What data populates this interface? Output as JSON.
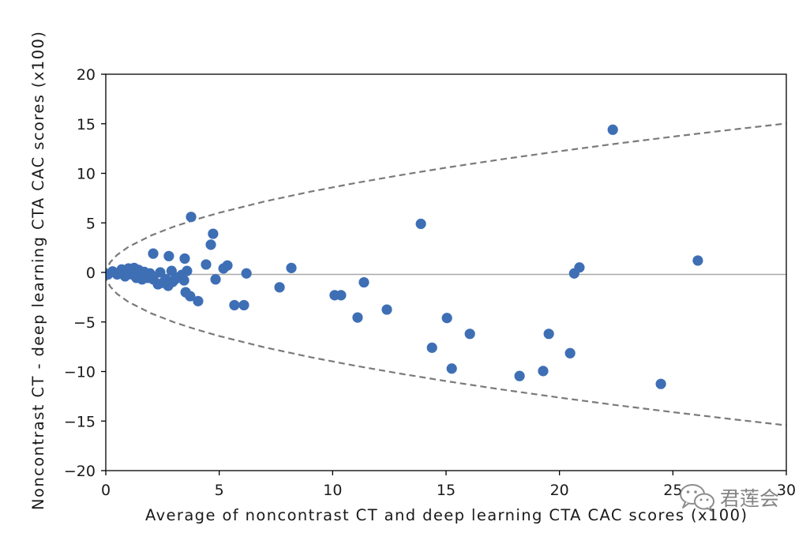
{
  "chart_data": {
    "type": "scatter",
    "xlabel": "Average of noncontrast CT and deep learning CTA CAC scores (x100)",
    "ylabel": "Noncontrast CT - deep learning CTA CAC scores (x100)",
    "xlim": [
      0,
      30
    ],
    "ylim": [
      -20,
      20
    ],
    "xticks": [
      0,
      5,
      10,
      15,
      20,
      25,
      30
    ],
    "xtick_labels": [
      "0",
      "5",
      "10",
      "15",
      "20",
      "25",
      "30"
    ],
    "yticks": [
      20,
      15,
      10,
      5,
      0,
      -5,
      -10,
      -15,
      -20
    ],
    "ytick_labels": [
      "20",
      "15",
      "10",
      "5",
      "0",
      "−5",
      "−10",
      "−15",
      "−20"
    ],
    "grid": false,
    "legend": "none",
    "series": [
      {
        "marker": "circle",
        "color": "#3e6fb5",
        "x": [
          22.35,
          3.76,
          4.73,
          4.63,
          13.89,
          26.1,
          20.88,
          20.65,
          8.18,
          6.2,
          5.36,
          5.19,
          4.42,
          4.84,
          3.48,
          2.78,
          2.09,
          3.58,
          3.45,
          3.52,
          3.72,
          4.07,
          5.67,
          6.09,
          7.66,
          10.09,
          10.37,
          11.38,
          11.1,
          12.39,
          15.04,
          14.38,
          15.25,
          16.05,
          18.24,
          19.28,
          19.53,
          20.47,
          24.47,
          0.1,
          0.3,
          0.5,
          0.7,
          0.85,
          1.0,
          1.15,
          1.25,
          1.35,
          1.45,
          1.6,
          1.7,
          1.85,
          1.95,
          2.1,
          2.3,
          2.4,
          2.5,
          2.65,
          2.75,
          2.9,
          2.95,
          3.05,
          3.2,
          3.35
        ],
        "y": [
          14.4,
          5.6,
          3.9,
          2.8,
          4.9,
          1.2,
          0.5,
          -0.1,
          0.45,
          -0.1,
          0.7,
          0.4,
          0.8,
          -0.7,
          1.4,
          1.65,
          1.9,
          0.15,
          -0.8,
          -2.0,
          -2.4,
          -2.9,
          -3.3,
          -3.3,
          -1.5,
          -2.3,
          -2.3,
          -1.0,
          -4.55,
          -3.75,
          -4.6,
          -7.6,
          -9.7,
          -6.2,
          -10.45,
          -9.95,
          -6.2,
          -8.15,
          -11.25,
          -0.2,
          0.1,
          -0.2,
          0.3,
          -0.4,
          0.4,
          -0.2,
          0.45,
          -0.55,
          0.25,
          -0.7,
          0.05,
          -0.55,
          -0.1,
          -0.7,
          -1.2,
          0.0,
          -1.05,
          -0.7,
          -1.35,
          0.15,
          -0.95,
          -0.7,
          -0.5,
          -0.25
        ]
      }
    ],
    "reference_line": {
      "y": -0.2,
      "style": "solid",
      "color": "#a8a8a8"
    },
    "limit_curves": {
      "style": "dashed",
      "color": "#7a7a7a",
      "x": [
        0,
        0.01,
        0.05,
        0.2,
        0.5,
        1,
        2,
        3,
        4,
        5,
        7,
        9,
        11,
        13,
        15,
        17.5,
        20,
        22.5,
        25,
        27.5,
        30
      ],
      "upper": [
        -0.2,
        0.08,
        0.42,
        1.04,
        1.77,
        2.58,
        3.73,
        4.62,
        5.36,
        6.02,
        7.16,
        8.14,
        9.02,
        9.82,
        10.57,
        11.43,
        12.23,
        12.99,
        13.7,
        14.38,
        15.03
      ],
      "lower": [
        -0.2,
        -0.48,
        -0.82,
        -1.44,
        -2.17,
        -2.98,
        -4.13,
        -5.02,
        -5.76,
        -6.42,
        -7.56,
        -8.54,
        -9.42,
        -10.22,
        -10.97,
        -11.83,
        -12.63,
        -13.39,
        -14.1,
        -14.78,
        -15.43
      ]
    }
  },
  "watermark": {
    "icon": "wechat-icon",
    "text": "君莲会"
  }
}
